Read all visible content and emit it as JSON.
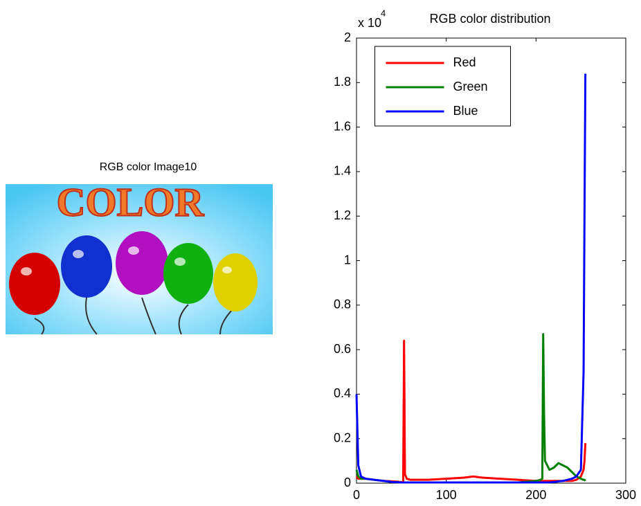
{
  "chart_data": [
    {
      "type": "image",
      "title": "RGB color Image10",
      "text": "COLOR"
    },
    {
      "type": "line",
      "title": "RGB color distribution",
      "y_multiplier": "x 10",
      "y_multiplier_power": "4",
      "x": [
        0,
        2,
        5,
        10,
        20,
        30,
        40,
        50,
        52,
        53,
        54,
        56,
        60,
        80,
        100,
        120,
        130,
        140,
        160,
        180,
        200,
        205,
        207,
        208,
        209,
        210,
        215,
        220,
        225,
        230,
        235,
        240,
        245,
        250,
        253,
        254,
        255
      ],
      "series": [
        {
          "name": "Red",
          "color": "#ff0000",
          "values": [
            300,
            200,
            200,
            200,
            150,
            100,
            80,
            50,
            50,
            6400,
            400,
            200,
            150,
            150,
            200,
            250,
            300,
            250,
            200,
            150,
            100,
            100,
            100,
            100,
            100,
            100,
            100,
            100,
            100,
            100,
            100,
            100,
            150,
            300,
            600,
            1000,
            1800
          ]
        },
        {
          "name": "Green",
          "color": "#008000",
          "values": [
            600,
            300,
            200,
            200,
            150,
            100,
            50,
            30,
            30,
            30,
            30,
            30,
            30,
            30,
            30,
            30,
            30,
            30,
            30,
            30,
            100,
            150,
            200,
            6700,
            3000,
            1000,
            600,
            700,
            900,
            800,
            700,
            500,
            300,
            200,
            150,
            150,
            100
          ]
        },
        {
          "name": "Blue",
          "color": "#0000ff",
          "values": [
            4000,
            800,
            300,
            200,
            150,
            100,
            50,
            30,
            30,
            30,
            30,
            30,
            30,
            30,
            30,
            30,
            30,
            30,
            30,
            30,
            30,
            30,
            30,
            30,
            30,
            30,
            30,
            50,
            80,
            100,
            150,
            200,
            300,
            600,
            5000,
            12000,
            18400
          ]
        }
      ],
      "xlim": [
        0,
        300
      ],
      "xticks": [
        0,
        100,
        200,
        300
      ],
      "ylim": [
        0,
        20000
      ],
      "yticks": [
        0,
        {
          "value": 2000,
          "label": "0.2"
        },
        {
          "value": 4000,
          "label": "0.4"
        },
        {
          "value": 6000,
          "label": "0.6"
        },
        {
          "value": 8000,
          "label": "0.8"
        },
        {
          "value": 10000,
          "label": "1"
        },
        {
          "value": 12000,
          "label": "1.2"
        },
        {
          "value": 14000,
          "label": "1.4"
        },
        {
          "value": 16000,
          "label": "1.6"
        },
        {
          "value": 18000,
          "label": "1.8"
        },
        {
          "value": 20000,
          "label": "2"
        }
      ],
      "grid": false,
      "legend": "upper center"
    }
  ]
}
